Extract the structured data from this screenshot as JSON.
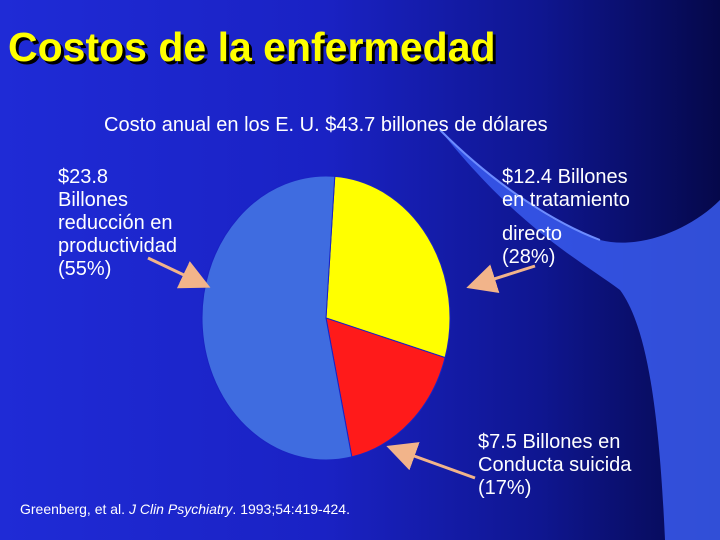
{
  "slide": {
    "title": "Costos de la enfermedad",
    "subtitle": "Costo anual en los E. U. $43.7 billones de dólares",
    "citation": {
      "authors": "Greenberg, et al. ",
      "journal": "J Clin Psychiatry",
      "details": ". 1993;54:419-424."
    }
  },
  "chart_data": {
    "type": "pie",
    "title": "Costo anual en los E. U. $43.7 billones de dólares",
    "total": 43.7,
    "slices": [
      {
        "label": "$23.8 Billones reducción en productividad (55%)",
        "value": 23.8,
        "percent": 55,
        "color": "#3f6ce0"
      },
      {
        "label": "$12.4 Billones en tratamiento directo (28%)",
        "value": 12.4,
        "percent": 28,
        "color": "#ffff00"
      },
      {
        "label": "$7.5 Billones en Conducta suicida (17%)",
        "value": 7.5,
        "percent": 17,
        "color": "#ff1a1a"
      }
    ],
    "labels_text": {
      "productivity": "$23.8\nBillones\nreducción en\nproductividad\n(55%)",
      "treatment_top": "$12.4 Billones\nen tratamiento",
      "treatment_bottom": "directo\n(28%)",
      "suicide": "$7.5 Billones en\nConducta suicida\n(17%)"
    }
  }
}
